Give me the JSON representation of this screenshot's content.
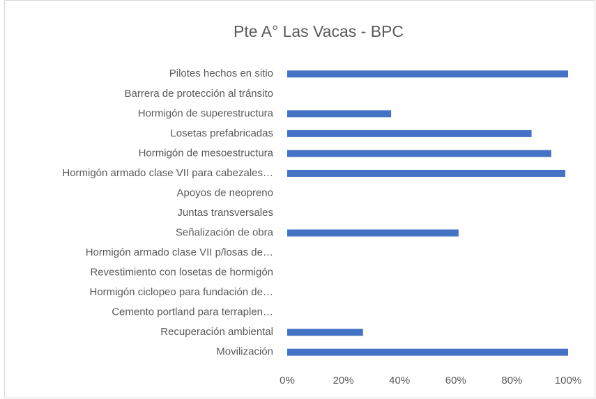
{
  "chart_data": {
    "type": "barh",
    "title": "Pte A° Las Vacas - BPC",
    "categories": [
      "Pilotes hechos en sitio",
      "Barrera de protección al tránsito",
      "Hormigón de superestructura",
      "Losetas prefabricadas",
      "Hormigón de mesoestructura",
      "Hormigón armado clase VII para cabezales…",
      "Apoyos de neopreno",
      "Juntas transversales",
      "Señalización de obra",
      "Hormigón armado clase VII p/losas de…",
      "Revestimiento con losetas de hormigón",
      "Hormigón ciclopeo para fundación de…",
      "Cemento portland para terraplen…",
      "Recuperación ambiental",
      "Movilización"
    ],
    "values": [
      100,
      0,
      37,
      87,
      94,
      99,
      0,
      0,
      61,
      0,
      0,
      0,
      0,
      27,
      100
    ],
    "color": "#4472c4",
    "xlim": [
      0,
      100
    ],
    "xticks": [
      {
        "value": 0,
        "label": "0%"
      },
      {
        "value": 20,
        "label": "20%"
      },
      {
        "value": 40,
        "label": "40%"
      },
      {
        "value": 60,
        "label": "60%"
      },
      {
        "value": 80,
        "label": "80%"
      },
      {
        "value": 100,
        "label": "100%"
      }
    ],
    "grid": false
  }
}
